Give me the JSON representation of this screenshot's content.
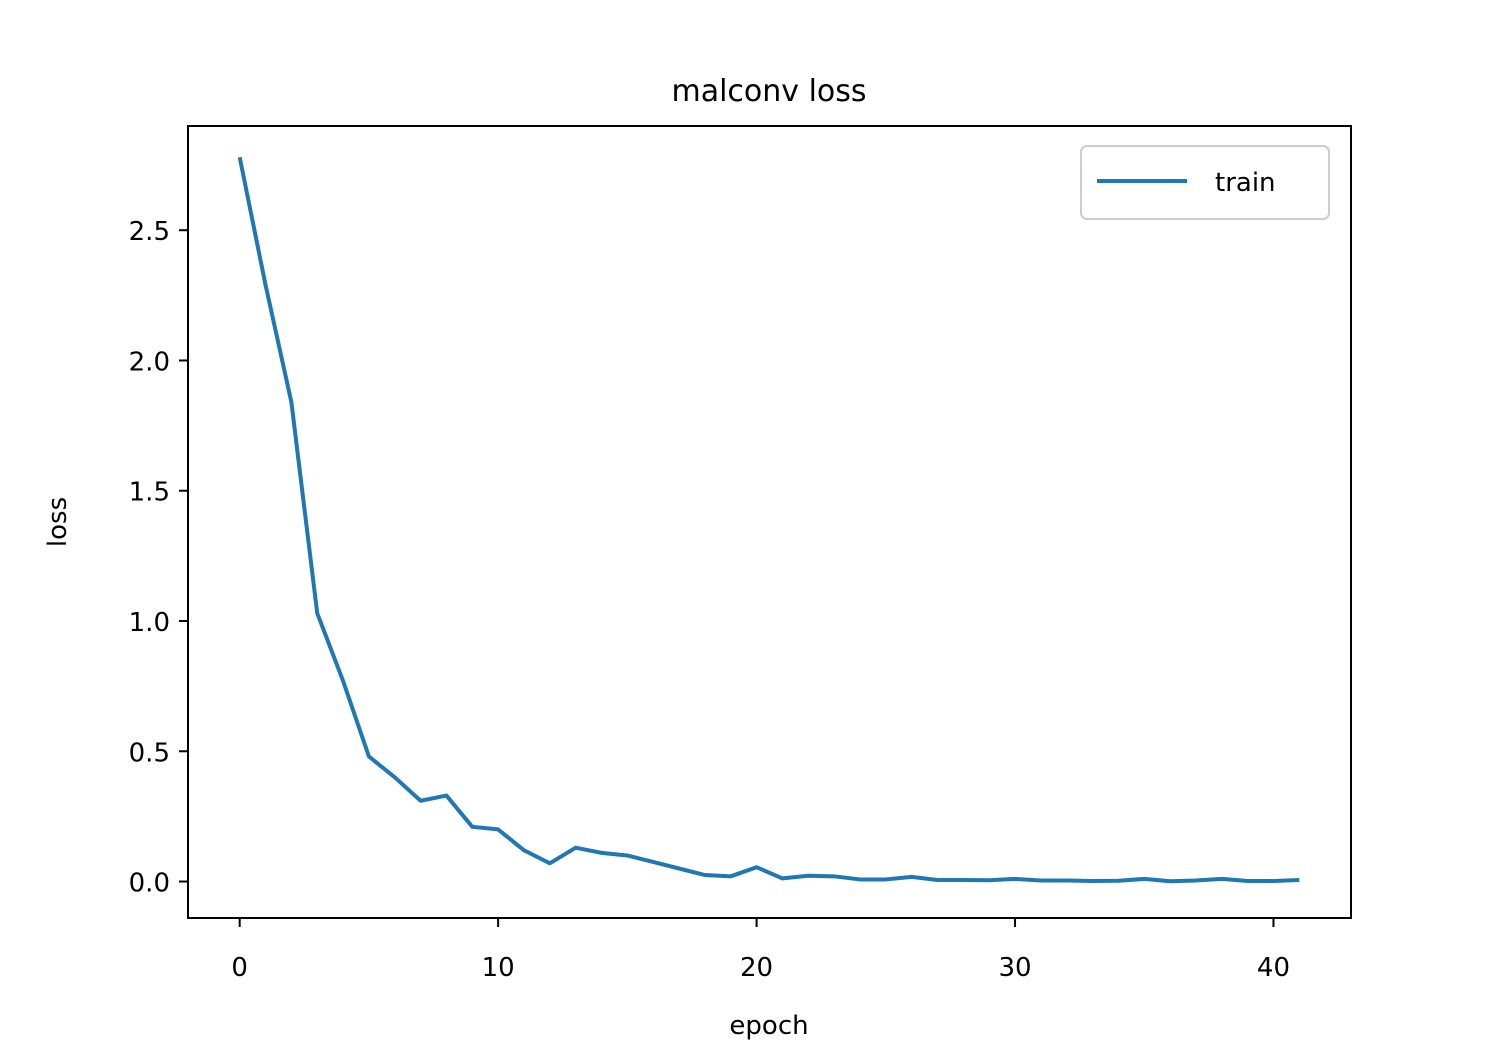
{
  "chart_data": {
    "type": "line",
    "title": "malconv loss",
    "xlabel": "epoch",
    "ylabel": "loss",
    "xlim": [
      -2,
      43
    ],
    "ylim": [
      -0.14,
      2.9
    ],
    "xticks": [
      0,
      10,
      20,
      30,
      40
    ],
    "yticks": [
      0.0,
      0.5,
      1.0,
      1.5,
      2.0,
      2.5
    ],
    "xtick_labels": [
      "0",
      "10",
      "20",
      "30",
      "40"
    ],
    "ytick_labels": [
      "0.0",
      "0.5",
      "1.0",
      "1.5",
      "2.0",
      "2.5"
    ],
    "grid": false,
    "legend_position": "top-right",
    "series": [
      {
        "name": "train",
        "color": "#1f77b4",
        "x": [
          0,
          1,
          2,
          3,
          4,
          5,
          6,
          7,
          8,
          9,
          10,
          11,
          12,
          13,
          14,
          15,
          16,
          17,
          18,
          19,
          20,
          21,
          22,
          23,
          24,
          25,
          26,
          27,
          28,
          29,
          30,
          31,
          32,
          33,
          34,
          35,
          36,
          37,
          38,
          39,
          40,
          41
        ],
        "y": [
          2.78,
          2.29,
          1.84,
          1.03,
          0.77,
          0.48,
          0.4,
          0.31,
          0.33,
          0.21,
          0.2,
          0.12,
          0.07,
          0.13,
          0.11,
          0.1,
          0.075,
          0.05,
          0.025,
          0.02,
          0.055,
          0.012,
          0.022,
          0.02,
          0.008,
          0.008,
          0.018,
          0.006,
          0.006,
          0.005,
          0.01,
          0.004,
          0.004,
          0.002,
          0.003,
          0.01,
          0.001,
          0.004,
          0.01,
          0.002,
          0.002,
          0.006
        ]
      }
    ]
  }
}
